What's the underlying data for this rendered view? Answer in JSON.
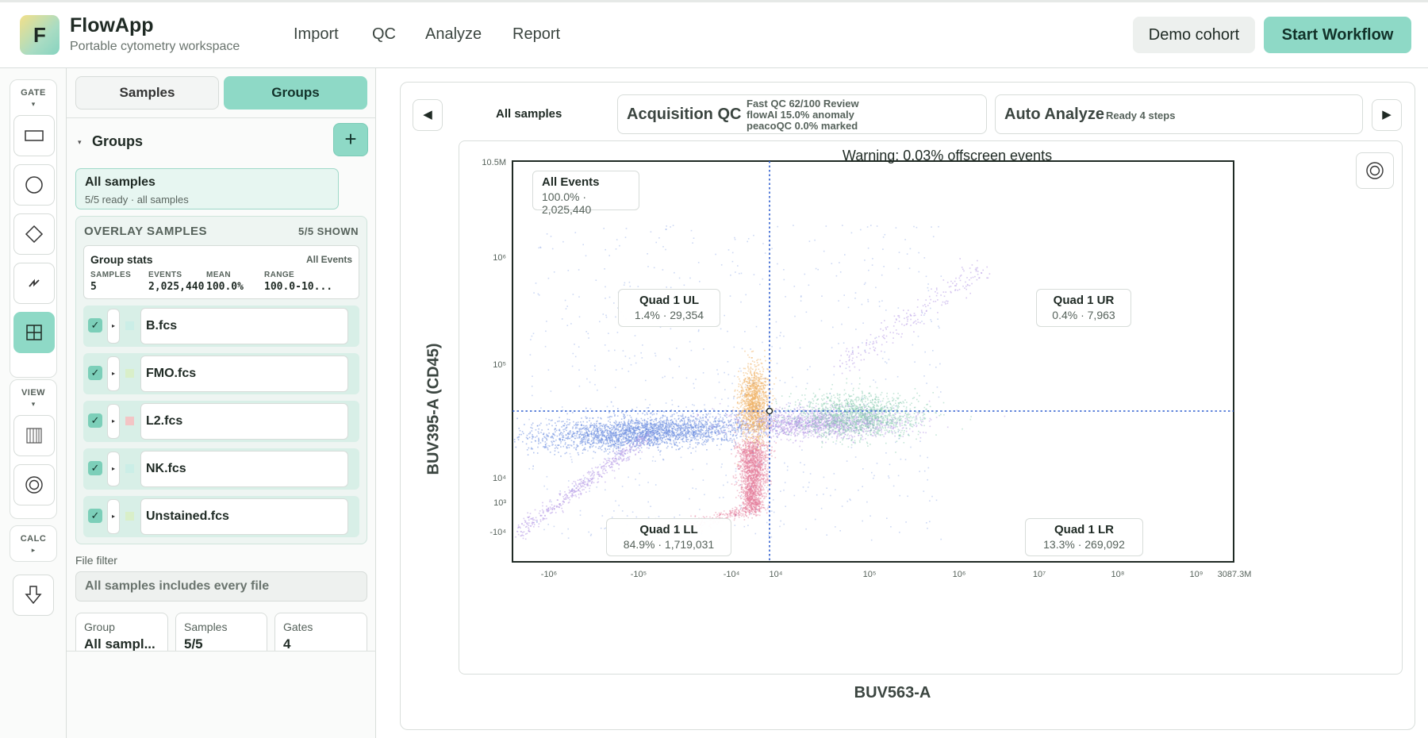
{
  "app": {
    "logo_letter": "F",
    "name": "FlowApp",
    "subtitle": "Portable cytometry workspace"
  },
  "nav": [
    "Import",
    "QC",
    "Analyze",
    "Report"
  ],
  "header_buttons": {
    "demo": "Demo cohort",
    "start": "Start Workflow"
  },
  "rail": {
    "gate_title": "GATE",
    "view_title": "VIEW",
    "calc_title": "CALC",
    "gate_tools": [
      "rectangle-gate-icon",
      "ellipse-gate-icon",
      "polygon-gate-icon",
      "spline-gate-icon",
      "quadrant-gate-icon"
    ],
    "active_tool": "quadrant-gate-icon",
    "view_tools": [
      "histogram-icon",
      "contour-icon"
    ],
    "calc_tools": [
      "export-down-icon"
    ]
  },
  "panel": {
    "tabs": [
      "Samples",
      "Groups"
    ],
    "active_tab": "Groups",
    "groups_heading": "Groups",
    "add_label": "+",
    "all_samples": {
      "title": "All samples",
      "subtitle": "5/5 ready · all samples"
    },
    "overlay": {
      "title": "OVERLAY SAMPLES",
      "shown": "5/5 SHOWN",
      "stats": {
        "title": "Group stats",
        "scope": "All Events",
        "labels": [
          "SAMPLES",
          "EVENTS",
          "MEAN",
          "RANGE"
        ],
        "values": [
          "5",
          "2,025,440",
          "100.0%",
          "100.0-10..."
        ]
      },
      "files": [
        {
          "name": "B.fcs",
          "checked": true,
          "color": "#cbeee7"
        },
        {
          "name": "FMO.fcs",
          "checked": true,
          "color": "#d9efc9"
        },
        {
          "name": "L2.fcs",
          "checked": true,
          "color": "#f3c5c5"
        },
        {
          "name": "NK.fcs",
          "checked": true,
          "color": "#cbeee7"
        },
        {
          "name": "Unstained.fcs",
          "checked": true,
          "color": "#d9efc9"
        }
      ]
    },
    "file_filter": {
      "label": "File filter",
      "value": "All samples includes every file"
    },
    "summary": [
      {
        "label": "Group",
        "value": "All sampl..."
      },
      {
        "label": "Samples",
        "value": "5/5"
      },
      {
        "label": "Gates",
        "value": "4"
      }
    ]
  },
  "main": {
    "prev": "◀",
    "next": "▶",
    "sample_label": "All samples",
    "qc": {
      "title": "Acquisition QC",
      "lines": [
        "Fast QC 62/100 Review",
        "flowAI 15.0% anomaly",
        "peacoQC 0.0% marked"
      ]
    },
    "auto": {
      "title": "Auto Analyze",
      "info": "Ready 4 steps"
    },
    "warning": "Warning: 0.03% offscreen events",
    "x_label": "BUV563-A",
    "y_label": "BUV395-A (CD45)",
    "all_events": {
      "title": "All Events",
      "stats": "100.0% · 2,025,440"
    },
    "quadrants": [
      {
        "name": "Quad 1 UL",
        "stats": "1.4% · 29,354"
      },
      {
        "name": "Quad 1 UR",
        "stats": "0.4% · 7,963"
      },
      {
        "name": "Quad 1 LL",
        "stats": "84.9% · 1,719,031"
      },
      {
        "name": "Quad 1 LR",
        "stats": "13.3% · 269,092"
      }
    ],
    "x_ticks": [
      "-10⁶",
      "-10⁵",
      "-10⁴",
      "10⁴",
      "10⁵",
      "10⁶",
      "10⁷",
      "10⁸",
      "10⁹",
      "3087.3M"
    ],
    "y_ticks": [
      "10.5M",
      "10⁶",
      "10⁵",
      "10⁴",
      "10³",
      "-10⁴"
    ],
    "colors": {
      "accent": "#8ed9c6",
      "gate_line": "#2f5fd0",
      "pop_blue": "#6f8fe0",
      "pop_purple": "#b69ae6",
      "pop_orange": "#f0b060",
      "pop_pink": "#e57a9a",
      "pop_green": "#7ec8a8"
    }
  }
}
